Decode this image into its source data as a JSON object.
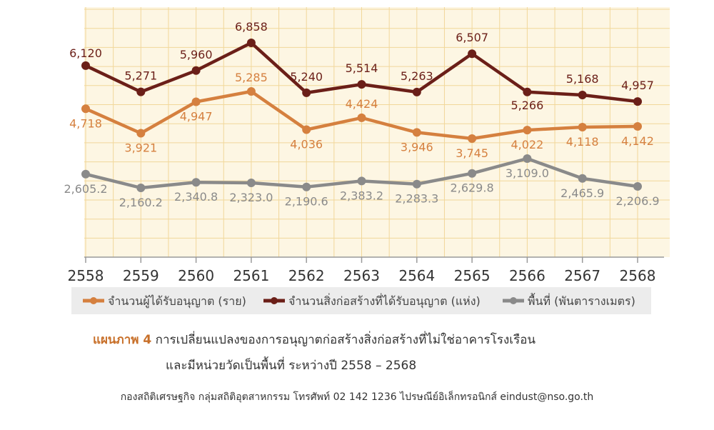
{
  "colors": {
    "permits": "#d5803f",
    "buildings": "#6b1f18",
    "area": "#8a8a8a",
    "plot_bg": "#fdf6e3",
    "grid": "#f1d79a",
    "legend_bg": "#ececec",
    "caption_prefix": "#c8702a"
  },
  "chart_data": {
    "type": "line",
    "x": [
      "2558",
      "2559",
      "2560",
      "2561",
      "2562",
      "2563",
      "2564",
      "2565",
      "2566",
      "2567",
      "2568"
    ],
    "series": [
      {
        "name": "จำนวนสิ่งก่อสร้างที่ได้รับอนุญาต (แห่ง)",
        "values": [
          6120,
          5271,
          5960,
          6858,
          5240,
          5514,
          5263,
          6507,
          5266,
          5168,
          4957
        ],
        "labels": [
          "6,120",
          "5,271",
          "5,960",
          "6,858",
          "5,240",
          "5,514",
          "5,263",
          "6,507",
          "5,266",
          "5,168",
          "4,957"
        ]
      },
      {
        "name": "จำนวนผู้ได้รับอนุญาต (ราย)",
        "values": [
          4718,
          3921,
          4947,
          5285,
          4036,
          4424,
          3946,
          3745,
          4022,
          4118,
          4142
        ],
        "labels": [
          "4,718",
          "3,921",
          "4,947",
          "5,285",
          "4,036",
          "4,424",
          "3,946",
          "3,745",
          "4,022",
          "4,118",
          "4,142"
        ]
      },
      {
        "name": "พื้นที่ (พันตารางเมตร)",
        "values": [
          2605.2,
          2160.2,
          2340.8,
          2323.0,
          2190.6,
          2383.2,
          2283.3,
          2629.8,
          3109.0,
          2465.9,
          2206.9
        ],
        "labels": [
          "2,605.2",
          "2,160.2",
          "2,340.8",
          "2,323.0",
          "2,190.6",
          "2,383.2",
          "2,283.3",
          "2,629.8",
          "3,109.0",
          "2,465.9",
          "2,206.9"
        ]
      }
    ],
    "grid": true,
    "legend_position": "bottom"
  },
  "legend": {
    "permits": "จำนวนผู้ได้รับอนุญาต (ราย)",
    "buildings": "จำนวนสิ่งก่อสร้างที่ได้รับอนุญาต (แห่ง)",
    "area": "พื้นที่ (พันตารางเมตร)"
  },
  "caption": {
    "prefix": "แผนภาพ 4",
    "line1": "การเปลี่ยนแปลงของการอนุญาตก่อสร้างสิ่งก่อสร้างที่ไม่ใช่อาคารโรงเรือน",
    "line2": "และมีหน่วยวัดเป็นพื้นที่ ระหว่างปี 2558 – 2568"
  },
  "footer": "กองสถิติเศรษฐกิจ  กลุ่มสถิติอุตสาหกรรม โทรศัพท์ 02 142 1236 ไปรษณีย์อิเล็กทรอนิกส์  eindust@nso.go.th"
}
